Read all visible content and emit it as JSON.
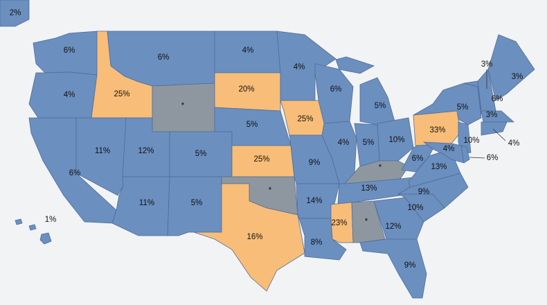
{
  "colors": {
    "blue": "#6b8fbf",
    "orange": "#f8bd78",
    "gray": "#8e979f",
    "background": "#f2f3f5"
  },
  "states": {
    "AK": {
      "value": "2%",
      "color": "blue"
    },
    "HI": {
      "value": "1%",
      "color": "blue"
    },
    "WA": {
      "value": "6%",
      "color": "blue"
    },
    "OR": {
      "value": "4%",
      "color": "blue"
    },
    "CA": {
      "value": "6%",
      "color": "blue"
    },
    "ID": {
      "value": "25%",
      "color": "orange"
    },
    "NV": {
      "value": "11%",
      "color": "blue"
    },
    "MT": {
      "value": "6%",
      "color": "blue"
    },
    "WY": {
      "value": "*",
      "color": "gray"
    },
    "UT": {
      "value": "12%",
      "color": "blue"
    },
    "CO": {
      "value": "5%",
      "color": "blue"
    },
    "AZ": {
      "value": "11%",
      "color": "blue"
    },
    "NM": {
      "value": "5%",
      "color": "blue"
    },
    "ND": {
      "value": "4%",
      "color": "blue"
    },
    "SD": {
      "value": "20%",
      "color": "orange"
    },
    "NE": {
      "value": "5%",
      "color": "blue"
    },
    "KS": {
      "value": "25%",
      "color": "orange"
    },
    "OK": {
      "value": "*",
      "color": "gray"
    },
    "TX": {
      "value": "16%",
      "color": "orange"
    },
    "MN": {
      "value": "4%",
      "color": "blue"
    },
    "IA": {
      "value": "25%",
      "color": "orange"
    },
    "MO": {
      "value": "9%",
      "color": "blue"
    },
    "AR": {
      "value": "14%",
      "color": "blue"
    },
    "LA": {
      "value": "8%",
      "color": "blue"
    },
    "WI": {
      "value": "6%",
      "color": "blue"
    },
    "IL": {
      "value": "4%",
      "color": "blue"
    },
    "MI": {
      "value": "5%",
      "color": "blue"
    },
    "IN": {
      "value": "5%",
      "color": "blue"
    },
    "OH": {
      "value": "10%",
      "color": "blue"
    },
    "KY": {
      "value": "*",
      "color": "gray"
    },
    "TN": {
      "value": "13%",
      "color": "blue"
    },
    "MS": {
      "value": "23%",
      "color": "orange"
    },
    "AL": {
      "value": "*",
      "color": "gray"
    },
    "GA": {
      "value": "12%",
      "color": "blue"
    },
    "FL": {
      "value": "9%",
      "color": "blue"
    },
    "SC": {
      "value": "10%",
      "color": "blue"
    },
    "NC": {
      "value": "9%",
      "color": "blue"
    },
    "VA": {
      "value": "13%",
      "color": "blue"
    },
    "WV": {
      "value": "6%",
      "color": "blue"
    },
    "PA": {
      "value": "33%",
      "color": "orange"
    },
    "NY": {
      "value": "5%",
      "color": "blue"
    },
    "NJ": {
      "value": "10%",
      "color": "blue"
    },
    "MD": {
      "value": "4%",
      "color": "blue"
    },
    "DE": {
      "value": "6%",
      "color": "blue"
    },
    "VT": {
      "value": "3%",
      "color": "blue"
    },
    "NH": {
      "value": "6%",
      "color": "blue"
    },
    "ME": {
      "value": "3%",
      "color": "blue"
    },
    "MA": {
      "value": "3%",
      "color": "blue"
    },
    "CT": {
      "value": "4%",
      "color": "blue"
    }
  }
}
